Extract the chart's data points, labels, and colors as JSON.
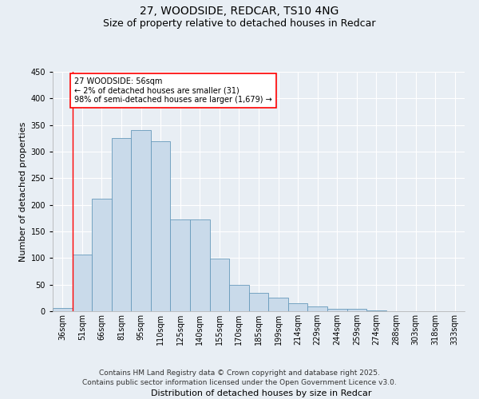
{
  "title_line1": "27, WOODSIDE, REDCAR, TS10 4NG",
  "title_line2": "Size of property relative to detached houses in Redcar",
  "xlabel": "Distribution of detached houses by size in Redcar",
  "ylabel": "Number of detached properties",
  "categories": [
    "36sqm",
    "51sqm",
    "66sqm",
    "81sqm",
    "95sqm",
    "110sqm",
    "125sqm",
    "140sqm",
    "155sqm",
    "170sqm",
    "185sqm",
    "199sqm",
    "214sqm",
    "229sqm",
    "244sqm",
    "259sqm",
    "274sqm",
    "288sqm",
    "303sqm",
    "318sqm",
    "333sqm"
  ],
  "values": [
    6,
    107,
    211,
    325,
    340,
    320,
    172,
    172,
    99,
    50,
    35,
    25,
    15,
    9,
    5,
    4,
    1,
    0,
    0,
    0,
    0
  ],
  "bar_color": "#c9daea",
  "bar_edge_color": "#6699bb",
  "annotation_title": "27 WOODSIDE: 56sqm",
  "annotation_line1": "← 2% of detached houses are smaller (31)",
  "annotation_line2": "98% of semi-detached houses are larger (1,679) →",
  "ylim": [
    0,
    450
  ],
  "yticks": [
    0,
    50,
    100,
    150,
    200,
    250,
    300,
    350,
    400,
    450
  ],
  "footer_line1": "Contains HM Land Registry data © Crown copyright and database right 2025.",
  "footer_line2": "Contains public sector information licensed under the Open Government Licence v3.0.",
  "background_color": "#e8eef4",
  "plot_bg_color": "#e8eef4",
  "grid_color": "#ffffff",
  "title_fontsize": 10,
  "subtitle_fontsize": 9,
  "tick_fontsize": 7,
  "label_fontsize": 8,
  "footer_fontsize": 6.5
}
